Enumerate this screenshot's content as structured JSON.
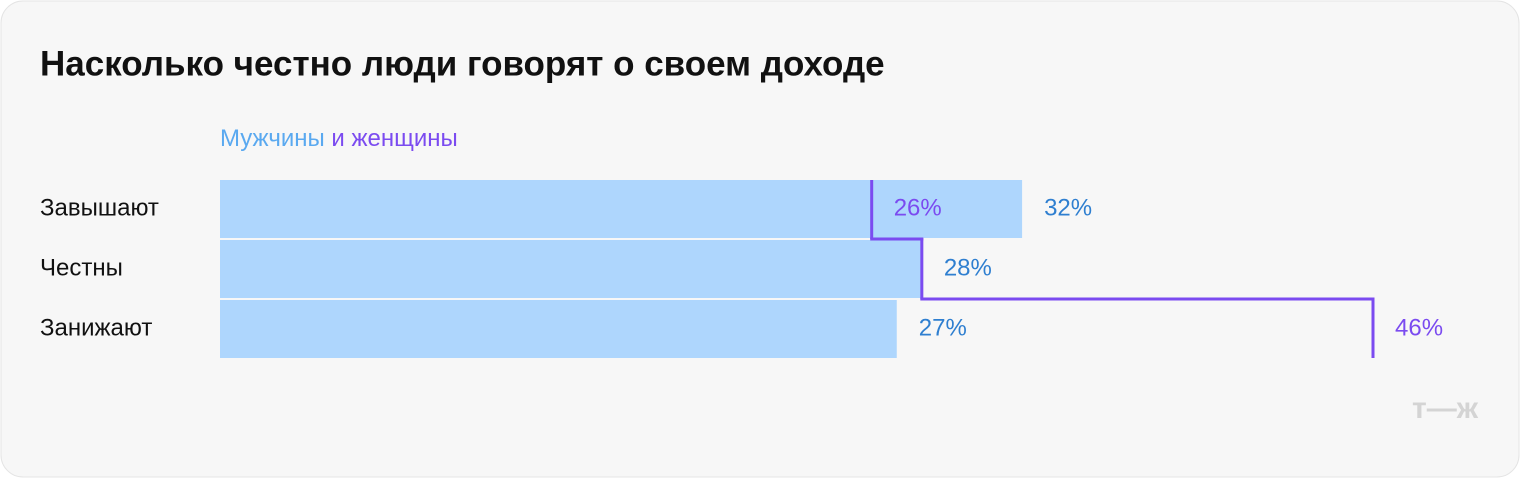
{
  "chart_data": {
    "type": "bar-step",
    "title": "Насколько честно люди говорят о своем доходе",
    "legend_joiner": "и",
    "categories": [
      "Завышают",
      "Честны",
      "Занижают"
    ],
    "xlim": [
      0,
      46
    ],
    "series": [
      {
        "name": "Мужчины",
        "color": "#aed6fd",
        "label_color": "#2f7fd0",
        "legend_color": "#5aa9f0",
        "values": [
          32,
          28,
          27
        ],
        "value_labels": [
          "32%",
          "28%",
          "27%"
        ]
      },
      {
        "name": "женщины",
        "color": "#7b4bf0",
        "label_color": "#7b4bf0",
        "legend_color": "#7b4bf0",
        "values": [
          26,
          28,
          46
        ],
        "value_labels": [
          "26%",
          null,
          "46%"
        ]
      }
    ],
    "logo": "т—ж"
  }
}
